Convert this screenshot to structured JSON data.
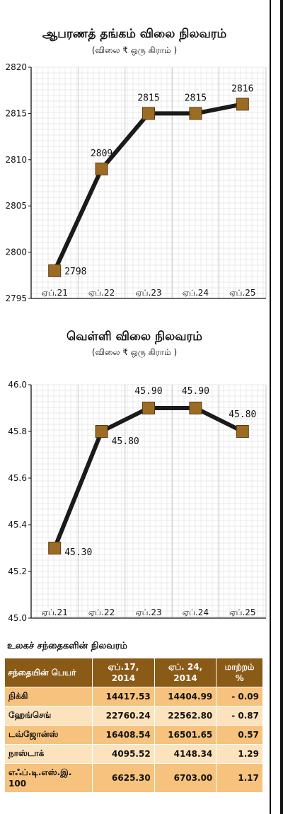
{
  "chart_data": [
    {
      "type": "line",
      "title": "ஆபரணத் தங்கம் விலை நிலவரம்",
      "subtitle": "(விலை ₹ ஒரு கிராம் )",
      "categories": [
        "ஏப்.21",
        "ஏப்.22",
        "ஏப்.23",
        "ஏப்.24",
        "ஏப்.25"
      ],
      "values": [
        2798,
        2809,
        2815,
        2815,
        2816
      ],
      "value_labels": [
        "2798",
        "2809",
        "2815",
        "2815",
        "2816"
      ],
      "yticks": [
        "2795",
        "2800",
        "2805",
        "2810",
        "2815",
        "2820"
      ],
      "ylim": [
        2795,
        2820
      ],
      "grid": true,
      "line_color": "#1a1a1a",
      "marker_color": "#9c6b24"
    },
    {
      "type": "line",
      "title": "வெள்ளி விலை நிலவரம்",
      "subtitle": "(விலை ₹ ஒரு கிராம் )",
      "categories": [
        "ஏப்.21",
        "ஏப்.22",
        "ஏப்.23",
        "ஏப்.24",
        "ஏப்.25"
      ],
      "values": [
        45.3,
        45.8,
        45.9,
        45.9,
        45.8
      ],
      "value_labels": [
        "45.30",
        "45.80",
        "45.90",
        "45.90",
        "45.80"
      ],
      "yticks": [
        "45.0",
        "45.2",
        "45.4",
        "45.6",
        "45.8",
        "46.0"
      ],
      "ylim": [
        45.0,
        46.0
      ],
      "grid": true,
      "line_color": "#1a1a1a",
      "marker_color": "#9c6b24"
    }
  ],
  "market": {
    "title": "உலகச் சந்தைகளின் நிலவரம்",
    "headers": [
      {
        "l1": "சந்தையின் பெயர்",
        "l2": ""
      },
      {
        "l1": "ஏப்.17,",
        "l2": "2014"
      },
      {
        "l1": "ஏப். 24,",
        "l2": "2014"
      },
      {
        "l1": "மாற்றம்",
        "l2": "%"
      }
    ],
    "rows": [
      {
        "name": "நிக்கி",
        "a": "14417.53",
        "b": "14404.99",
        "c": "- 0.09"
      },
      {
        "name": "ஹேங்செங்",
        "a": "22760.24",
        "b": "22562.80",
        "c": "- 0.87"
      },
      {
        "name": "டவ்ஜோன்ஸ்",
        "a": "16408.54",
        "b": "16501.65",
        "c": "0.57"
      },
      {
        "name": "நாஸ்டாக்",
        "a": "4095.52",
        "b": "4148.34",
        "c": "1.29"
      },
      {
        "name": "எஃப்.டி.எஸ்.இ. 100",
        "a": "6625.30",
        "b": "6703.00",
        "c": "1.17"
      }
    ],
    "header_color": "#8a5a17",
    "row_colors": [
      "#f6c27d",
      "#fde3bd"
    ]
  }
}
